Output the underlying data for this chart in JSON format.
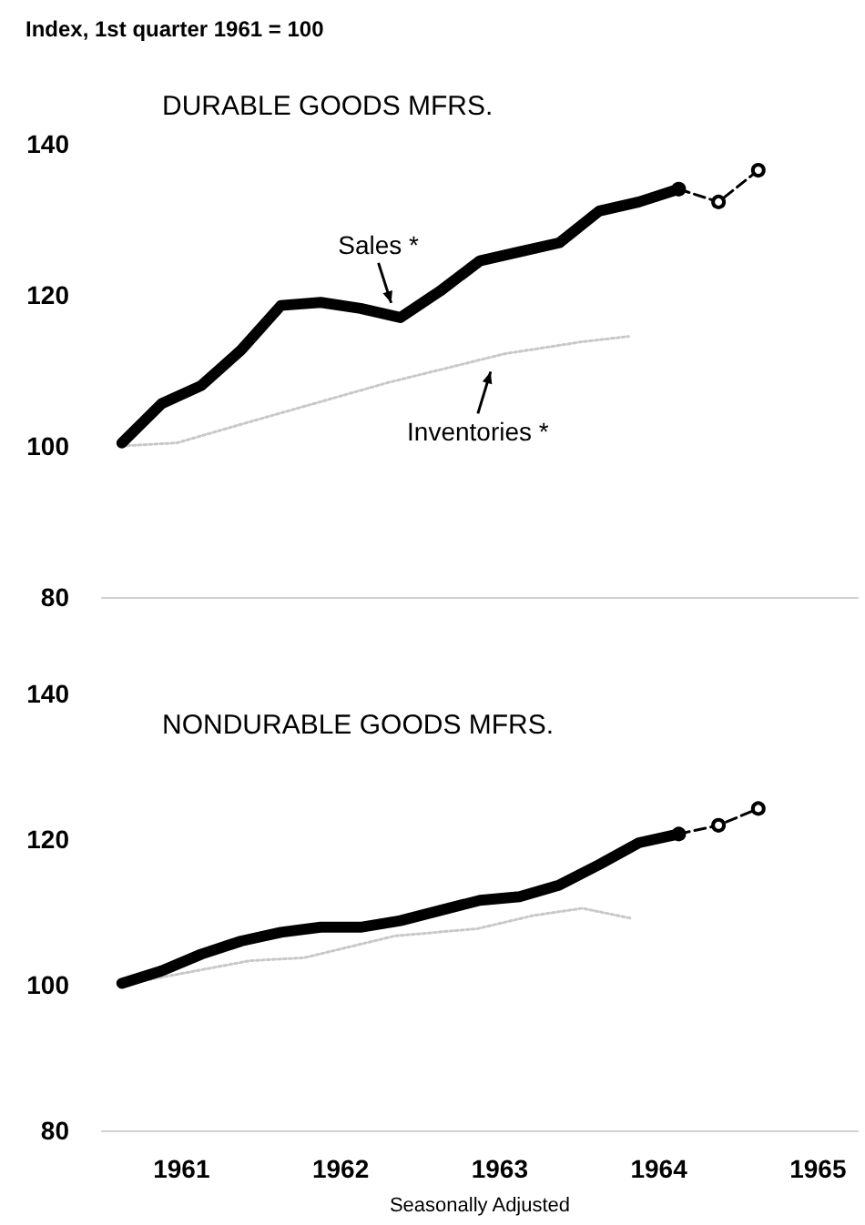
{
  "chart_data": [
    {
      "type": "line",
      "title": "DURABLE GOODS MFRS.",
      "ylabel": "Index, 1st quarter 1961 = 100",
      "xlim": [
        1961,
        1965.75
      ],
      "ylim": [
        80,
        140
      ],
      "yticks": [
        80,
        100,
        120,
        140
      ],
      "tick_labels": "y",
      "grid": false,
      "annotations": [
        {
          "text": "Sales *",
          "x": 1962.875,
          "y": 117
        },
        {
          "text": "Inventories *",
          "x": 1963.5,
          "y": 112
        }
      ],
      "series": [
        {
          "color": "#000000",
          "marker": "none",
          "line_style": "solid",
          "x": [
            1961.125,
            1961.375,
            1961.625,
            1961.875,
            1962.125,
            1962.375,
            1962.625,
            1962.875,
            1963.125,
            1963.375,
            1963.625,
            1963.875,
            1964.125,
            1964.375,
            1964.625
          ],
          "values": [
            100.4,
            105.6,
            108,
            112.7,
            118.6,
            119,
            118.2,
            117,
            120.5,
            124.5,
            125.7,
            126.9,
            131.1,
            132.3,
            134
          ]
        },
        {
          "color": "#000000",
          "marker": "circle",
          "line_style": "dashed",
          "x": [
            1964.625,
            1964.875,
            1965.125
          ],
          "values": [
            134,
            132.3,
            136.5
          ]
        },
        {
          "color": "#c8c8c8",
          "marker": "none",
          "line_style": "dotted",
          "x": [
            1961.125,
            1961.47,
            1961.93,
            1962.8,
            1963.53,
            1964.02,
            1964.31
          ],
          "values": [
            100,
            100.4,
            103.2,
            108.4,
            112.2,
            113.8,
            114.5
          ]
        }
      ]
    },
    {
      "type": "line",
      "title": "NONDURABLE GOODS MFRS.",
      "xlabel": "Seasonally Adjusted",
      "xlim": [
        1961,
        1965.75
      ],
      "xticks": [
        {
          "value": 1961.5,
          "label": "1961"
        },
        {
          "value": 1962.5,
          "label": "1962"
        },
        {
          "value": 1963.5,
          "label": "1963"
        },
        {
          "value": 1964.5,
          "label": "1964"
        },
        {
          "value": 1965.5,
          "label": "1965"
        }
      ],
      "ylim": [
        80,
        140
      ],
      "yticks": [
        80,
        100,
        120,
        140
      ],
      "grid": false,
      "series": [
        {
          "color": "#000000",
          "marker": "none",
          "line_style": "solid",
          "x": [
            1961.125,
            1961.375,
            1961.625,
            1961.875,
            1962.125,
            1962.375,
            1962.625,
            1962.875,
            1963.125,
            1963.375,
            1963.625,
            1963.875,
            1964.125,
            1964.375,
            1964.625
          ],
          "values": [
            100.2,
            101.9,
            104.2,
            106,
            107.2,
            107.9,
            107.9,
            108.8,
            110.2,
            111.6,
            112.1,
            113.7,
            116.5,
            119.5,
            120.7
          ]
        },
        {
          "color": "#000000",
          "marker": "circle",
          "line_style": "dashed",
          "x": [
            1964.625,
            1964.875,
            1965.125
          ],
          "values": [
            120.7,
            121.9,
            124.2
          ]
        },
        {
          "color": "#c8c8c8",
          "marker": "none",
          "line_style": "dotted",
          "x": [
            1961.125,
            1961.93,
            1962.27,
            1962.84,
            1963.36,
            1963.71,
            1964.02,
            1964.33
          ],
          "values": [
            100,
            103.3,
            103.7,
            106.7,
            107.7,
            109.5,
            110.5,
            109.1
          ]
        }
      ]
    }
  ]
}
